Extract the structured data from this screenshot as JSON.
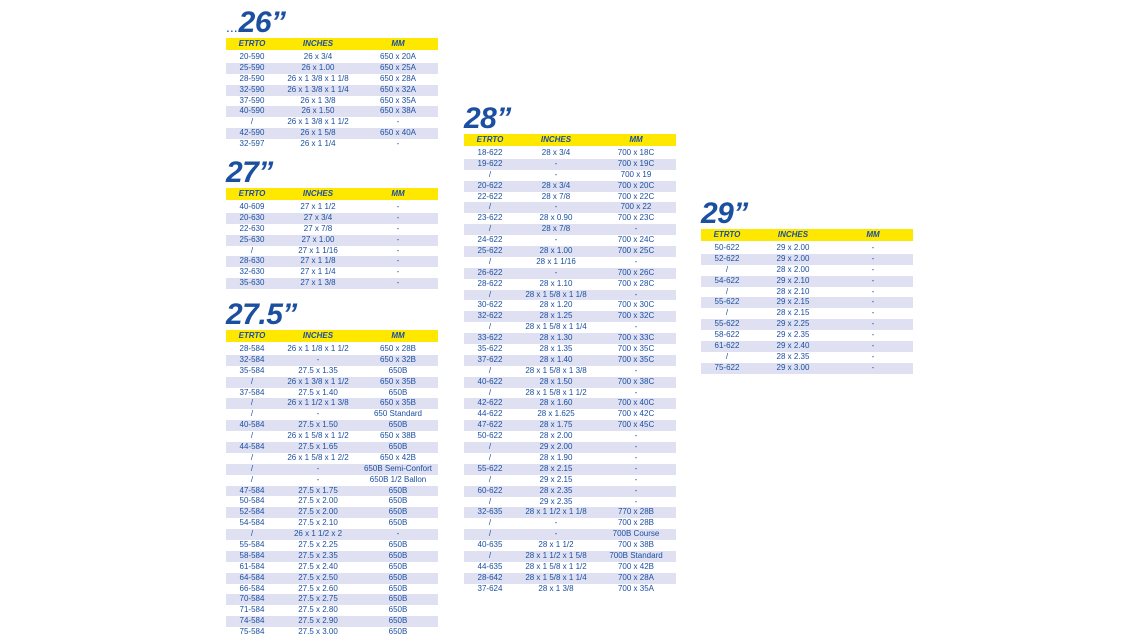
{
  "columns": {
    "etrto": "ETRTO",
    "inches": "INCHES",
    "mm": "MM"
  },
  "tables": [
    {
      "prefix": "...",
      "title": "26”",
      "rows": [
        [
          "20-590",
          "26 x 3/4",
          "650 x 20A"
        ],
        [
          "25-590",
          "26 x 1.00",
          "650 x 25A"
        ],
        [
          "28-590",
          "26 x 1 3/8 x 1 1/8",
          "650 x 28A"
        ],
        [
          "32-590",
          "26 x 1 3/8 x 1 1/4",
          "650 x 32A"
        ],
        [
          "37-590",
          "26 x 1 3/8",
          "650 x 35A"
        ],
        [
          "40-590",
          "26 x 1.50",
          "650 x 38A"
        ],
        [
          "/",
          "26 x 1 3/8 x 1 1/2",
          "-"
        ],
        [
          "42-590",
          "26 x 1 5/8",
          "650 x 40A"
        ],
        [
          "32-597",
          "26 x 1 1/4",
          "-"
        ]
      ]
    },
    {
      "prefix": "",
      "title": "27”",
      "rows": [
        [
          "40-609",
          "27 x 1 1/2",
          "-"
        ],
        [
          "20-630",
          "27 x 3/4",
          "-"
        ],
        [
          "22-630",
          "27 x 7/8",
          "-"
        ],
        [
          "25-630",
          "27 x 1.00",
          "-"
        ],
        [
          "/",
          "27 x 1 1/16",
          "-"
        ],
        [
          "28-630",
          "27 x 1 1/8",
          "-"
        ],
        [
          "32-630",
          "27 x 1 1/4",
          "-"
        ],
        [
          "35-630",
          "27 x 1 3/8",
          "-"
        ]
      ]
    },
    {
      "prefix": "",
      "title": "27.5”",
      "rows": [
        [
          "28-584",
          "26 x 1 1/8 x 1 1/2",
          "650 x 28B"
        ],
        [
          "32-584",
          "-",
          "650 x 32B"
        ],
        [
          "35-584",
          "27.5 x 1.35",
          "650B"
        ],
        [
          "/",
          "26 x 1 3/8 x 1 1/2",
          "650 x 35B"
        ],
        [
          "37-584",
          "27.5 x 1.40",
          "650B"
        ],
        [
          "/",
          "26 x 1 1/2 x 1 3/8",
          "650 x 35B"
        ],
        [
          "/",
          "-",
          "650 Standard"
        ],
        [
          "40-584",
          "27.5 x 1.50",
          "650B"
        ],
        [
          "/",
          "26 x 1 5/8 x 1 1/2",
          "650 x 38B"
        ],
        [
          "44-584",
          "27.5 x 1.65",
          "650B"
        ],
        [
          "/",
          "26 x 1 5/8 x 1 2/2",
          "650 x 42B"
        ],
        [
          "/",
          "-",
          "650B Semi-Confort"
        ],
        [
          "/",
          "-",
          "650B 1/2 Ballon"
        ],
        [
          "47-584",
          "27.5 x 1.75",
          "650B"
        ],
        [
          "50-584",
          "27.5 x 2.00",
          "650B"
        ],
        [
          "52-584",
          "27.5 x 2.00",
          "650B"
        ],
        [
          "54-584",
          "27.5 x 2.10",
          "650B"
        ],
        [
          "/",
          "26 x 1 1/2 x 2",
          "-"
        ],
        [
          "55-584",
          "27.5 x 2.25",
          "650B"
        ],
        [
          "58-584",
          "27.5 x 2.35",
          "650B"
        ],
        [
          "61-584",
          "27.5 x 2.40",
          "650B"
        ],
        [
          "64-584",
          "27.5 x 2.50",
          "650B"
        ],
        [
          "66-584",
          "27.5 x 2.60",
          "650B"
        ],
        [
          "70-584",
          "27.5 x 2.75",
          "650B"
        ],
        [
          "71-584",
          "27.5 x 2.80",
          "650B"
        ],
        [
          "74-584",
          "27.5 x 2.90",
          "650B"
        ],
        [
          "75-584",
          "27.5 x 3.00",
          "650B"
        ]
      ]
    },
    {
      "prefix": "",
      "title": "28”",
      "rows": [
        [
          "18-622",
          "28 x 3/4",
          "700 x 18C"
        ],
        [
          "19-622",
          "-",
          "700 x 19C"
        ],
        [
          "/",
          "-",
          "700 x 19"
        ],
        [
          "20-622",
          "28 x 3/4",
          "700 x 20C"
        ],
        [
          "22-622",
          "28 x 7/8",
          "700 x 22C"
        ],
        [
          "/",
          "-",
          "700 x 22"
        ],
        [
          "23-622",
          "28 x 0.90",
          "700 x 23C"
        ],
        [
          "/",
          "28 x 7/8",
          "-"
        ],
        [
          "24-622",
          "-",
          "700 x 24C"
        ],
        [
          "25-622",
          "28 x 1.00",
          "700 x 25C"
        ],
        [
          "/",
          "28 x 1 1/16",
          "-"
        ],
        [
          "26-622",
          "-",
          "700 x 26C"
        ],
        [
          "28-622",
          "28 x 1.10",
          "700 x 28C"
        ],
        [
          "/",
          "28 x 1 5/8 x 1 1/8",
          "-"
        ],
        [
          "30-622",
          "28 x 1.20",
          "700 x 30C"
        ],
        [
          "32-622",
          "28 x 1.25",
          "700 x 32C"
        ],
        [
          "/",
          "28 x 1 5/8 x 1 1/4",
          "-"
        ],
        [
          "33-622",
          "28 x 1.30",
          "700 x 33C"
        ],
        [
          "35-622",
          "28 x 1.35",
          "700 x 35C"
        ],
        [
          "37-622",
          "28 x 1.40",
          "700 x 35C"
        ],
        [
          "/",
          "28 x 1 5/8 x 1 3/8",
          "-"
        ],
        [
          "40-622",
          "28 x 1.50",
          "700 x 38C"
        ],
        [
          "/",
          "28 x 1 5/8 x 1 1/2",
          "-"
        ],
        [
          "42-622",
          "28 x 1.60",
          "700 x 40C"
        ],
        [
          "44-622",
          "28 x 1.625",
          "700 x 42C"
        ],
        [
          "47-622",
          "28 x 1.75",
          "700 x 45C"
        ],
        [
          "50-622",
          "28 x 2.00",
          "-"
        ],
        [
          "/",
          "29 x 2.00",
          "-"
        ],
        [
          "/",
          "28 x 1.90",
          "-"
        ],
        [
          "55-622",
          "28 x 2.15",
          "-"
        ],
        [
          "/",
          "29 x 2.15",
          "-"
        ],
        [
          "60-622",
          "28 x 2.35",
          "-"
        ],
        [
          "/",
          "29 x 2.35",
          "-"
        ],
        [
          "32-635",
          "28 x 1 1/2 x 1 1/8",
          "770 x 28B"
        ],
        [
          "/",
          "-",
          "700 x 28B"
        ],
        [
          "/",
          "-",
          "700B Course"
        ],
        [
          "40-635",
          "28 x 1 1/2",
          "700 x 38B"
        ],
        [
          "/",
          "28 x 1 1/2 x 1 5/8",
          "700B Standard"
        ],
        [
          "44-635",
          "28 x 1 5/8 x 1 1/2",
          "700 x 42B"
        ],
        [
          "28-642",
          "28 x 1 5/8 x 1 1/4",
          "700 x 28A"
        ],
        [
          "37-624",
          "28 x 1 3/8",
          "700 x 35A"
        ]
      ]
    },
    {
      "prefix": "",
      "title": "29”",
      "rows": [
        [
          "50-622",
          "29 x 2.00",
          "-"
        ],
        [
          "52-622",
          "29 x 2.00",
          "-"
        ],
        [
          "/",
          "28 x 2.00",
          "-"
        ],
        [
          "54-622",
          "29 x 2.10",
          "-"
        ],
        [
          "/",
          "28 x 2.10",
          "-"
        ],
        [
          "55-622",
          "29 x 2.15",
          "-"
        ],
        [
          "/",
          "28 x 2.15",
          "-"
        ],
        [
          "55-622",
          "29 x 2.25",
          "-"
        ],
        [
          "58-622",
          "29 x 2.35",
          "-"
        ],
        [
          "61-622",
          "29 x 2.40",
          "-"
        ],
        [
          "/",
          "28 x 2.35",
          "-"
        ],
        [
          "75-622",
          "29 x 3.00",
          "-"
        ]
      ]
    }
  ]
}
